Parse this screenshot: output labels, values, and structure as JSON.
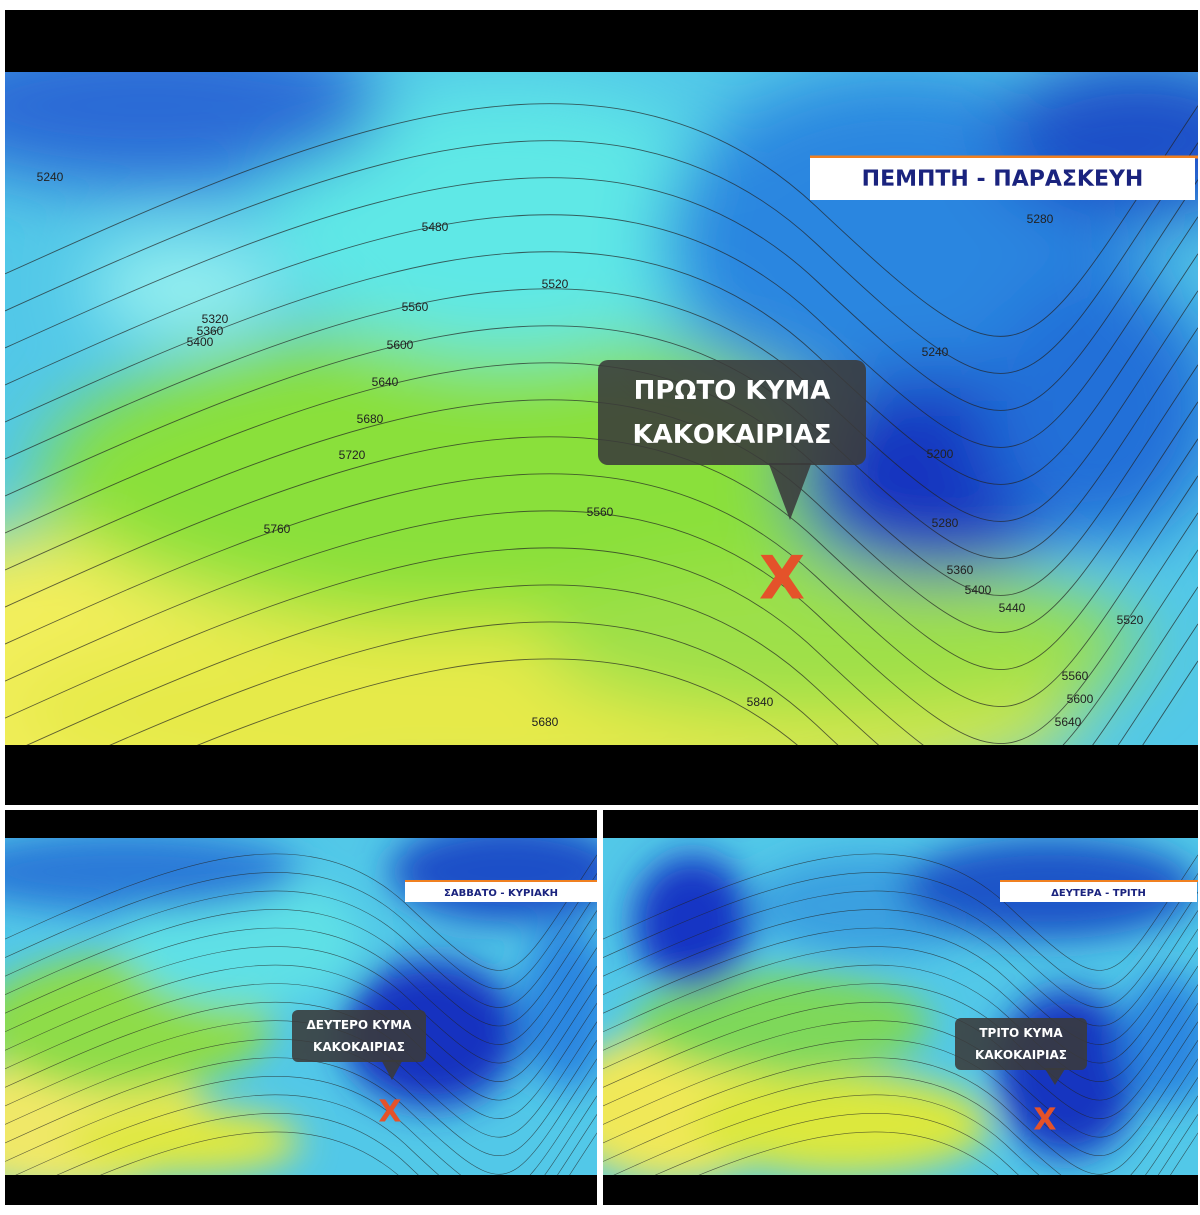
{
  "panels": [
    {
      "label": "ΠΕΜΠΤΗ - ΠΑΡΑΣΚΕΥΗ",
      "callout": [
        "ΠΡΩΤΟ ΚΥΜΑ",
        "ΚΑΚΟΚΑΙΡΙΑΣ"
      ],
      "marker": "X",
      "contour_labels": [
        "5240",
        "5480",
        "5520",
        "5560",
        "5320",
        "5360",
        "5400",
        "5600",
        "5640",
        "5680",
        "5720",
        "5760",
        "5560",
        "5680",
        "5840",
        "5280",
        "5240",
        "5200",
        "5280",
        "5360",
        "5400",
        "5440",
        "5520",
        "5560",
        "5600",
        "5640"
      ]
    },
    {
      "label": "ΣΑΒΒΑΤΟ - ΚΥΡΙΑΚΗ",
      "callout": [
        "ΔΕΥΤΕΡΟ ΚΥΜΑ",
        "ΚΑΚΟΚΑΙΡΙΑΣ"
      ],
      "marker": "X"
    },
    {
      "label": "ΔΕΥΤΕΡΑ - ΤΡΙΤΗ",
      "callout": [
        "ΤΡΙΤΟ ΚΥΜΑ",
        "ΚΑΚΟΚΑΙΡΙΑΣ"
      ],
      "marker": "X"
    }
  ]
}
